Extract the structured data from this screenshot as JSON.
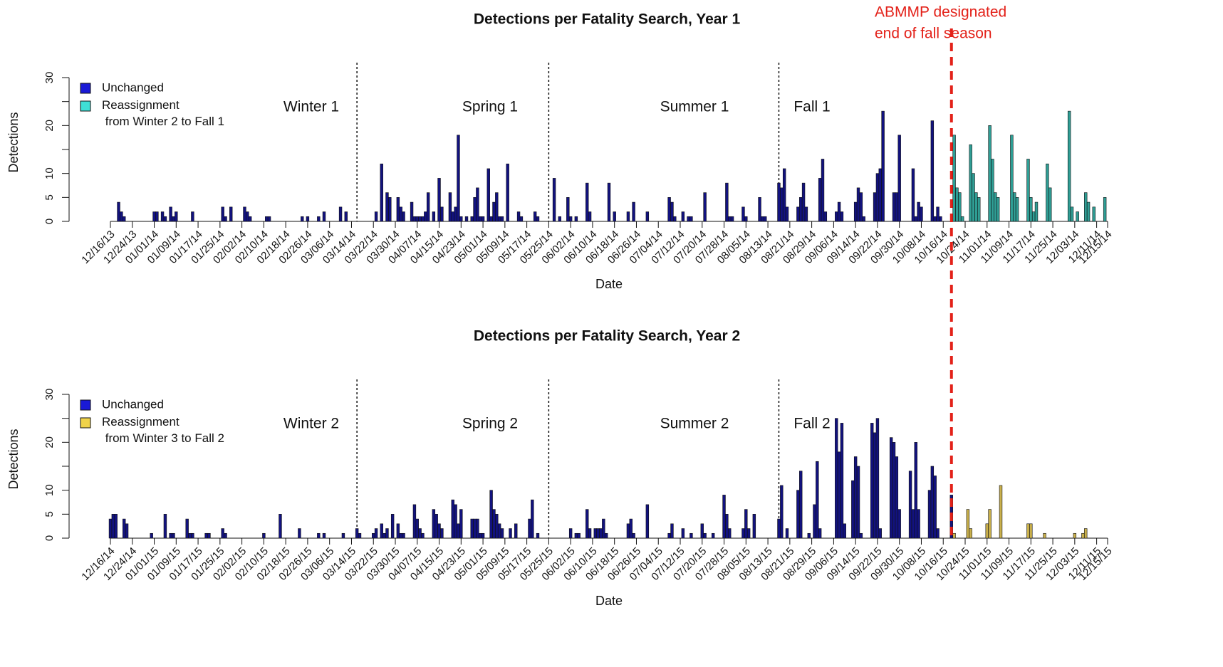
{
  "annotation": {
    "text": [
      "ABMMP designated",
      "end of fall season"
    ],
    "x": 307,
    "color": "#e32119"
  },
  "chart_data": [
    {
      "type": "bar",
      "title": "Detections per Fatality Search, Year 1",
      "xlabel": "Date",
      "ylabel": "Detections",
      "legend": "upper left",
      "xlim": [
        0,
        364
      ],
      "ylim": [
        0,
        30
      ],
      "yticks": [
        0,
        5,
        10,
        20,
        30
      ],
      "yminor_ticks": [
        15,
        25
      ],
      "dividers": [
        90,
        160,
        244
      ],
      "season_labels": [
        "Winter 1",
        "Spring 1",
        "Summer 1",
        "Fall 1"
      ],
      "xticks": [
        {
          "value": 0,
          "label": "12/16/13"
        },
        {
          "value": 8,
          "label": "12/24/13"
        },
        {
          "value": 16,
          "label": "01/01/14"
        },
        {
          "value": 24,
          "label": "01/09/14"
        },
        {
          "value": 32,
          "label": "01/17/14"
        },
        {
          "value": 40,
          "label": "01/25/14"
        },
        {
          "value": 48,
          "label": "02/02/14"
        },
        {
          "value": 56,
          "label": "02/10/14"
        },
        {
          "value": 64,
          "label": "02/18/14"
        },
        {
          "value": 72,
          "label": "02/26/14"
        },
        {
          "value": 80,
          "label": "03/06/14"
        },
        {
          "value": 88,
          "label": "03/14/14"
        },
        {
          "value": 96,
          "label": "03/22/14"
        },
        {
          "value": 104,
          "label": "03/30/14"
        },
        {
          "value": 112,
          "label": "04/07/14"
        },
        {
          "value": 120,
          "label": "04/15/14"
        },
        {
          "value": 128,
          "label": "04/23/14"
        },
        {
          "value": 136,
          "label": "05/01/14"
        },
        {
          "value": 144,
          "label": "05/09/14"
        },
        {
          "value": 152,
          "label": "05/17/14"
        },
        {
          "value": 160,
          "label": "05/25/14"
        },
        {
          "value": 168,
          "label": "06/02/14"
        },
        {
          "value": 176,
          "label": "06/10/14"
        },
        {
          "value": 184,
          "label": "06/18/14"
        },
        {
          "value": 192,
          "label": "06/26/14"
        },
        {
          "value": 200,
          "label": "07/04/14"
        },
        {
          "value": 208,
          "label": "07/12/14"
        },
        {
          "value": 216,
          "label": "07/20/14"
        },
        {
          "value": 224,
          "label": "07/28/14"
        },
        {
          "value": 232,
          "label": "08/05/14"
        },
        {
          "value": 240,
          "label": "08/13/14"
        },
        {
          "value": 248,
          "label": "08/21/14"
        },
        {
          "value": 256,
          "label": "08/29/14"
        },
        {
          "value": 264,
          "label": "09/06/14"
        },
        {
          "value": 272,
          "label": "09/14/14"
        },
        {
          "value": 280,
          "label": "09/22/14"
        },
        {
          "value": 288,
          "label": "09/30/14"
        },
        {
          "value": 296,
          "label": "10/08/14"
        },
        {
          "value": 304,
          "label": "10/16/14"
        },
        {
          "value": 312,
          "label": "10/24/14"
        },
        {
          "value": 320,
          "label": "11/01/14"
        },
        {
          "value": 328,
          "label": "11/09/14"
        },
        {
          "value": 336,
          "label": "11/17/14"
        },
        {
          "value": 344,
          "label": "11/25/14"
        },
        {
          "value": 352,
          "label": "12/03/14"
        },
        {
          "value": 360,
          "label": "12/11/14"
        },
        {
          "value": 364,
          "label": "12/15/14"
        }
      ],
      "series": [
        {
          "name": "Unchanged",
          "color": "#12127f",
          "legend_color": "#1a1ad6",
          "x": [
            3,
            4,
            5,
            16,
            17,
            19,
            20,
            22,
            23,
            24,
            30,
            41,
            42,
            44,
            49,
            50,
            51,
            57,
            58,
            70,
            72,
            76,
            78,
            84,
            86,
            97,
            99,
            101,
            102,
            105,
            106,
            107,
            110,
            111,
            112,
            113,
            114,
            115,
            116,
            118,
            120,
            121,
            124,
            125,
            126,
            127,
            128,
            130,
            132,
            133,
            134,
            135,
            136,
            138,
            139,
            140,
            141,
            142,
            143,
            145,
            149,
            150,
            155,
            156,
            162,
            164,
            167,
            168,
            170,
            174,
            175,
            182,
            184,
            189,
            191,
            196,
            204,
            205,
            206,
            209,
            211,
            212,
            217,
            225,
            226,
            227,
            231,
            232,
            237,
            238,
            239,
            244,
            245,
            246,
            247,
            251,
            252,
            253,
            254,
            259,
            260,
            261,
            265,
            266,
            267,
            272,
            273,
            274,
            275,
            279,
            280,
            281,
            282,
            286,
            287,
            288,
            293,
            294,
            295,
            296,
            300,
            301,
            302,
            303
          ],
          "values": [
            4,
            2,
            1,
            2,
            2,
            2,
            1,
            3,
            1,
            2,
            2,
            3,
            1,
            3,
            3,
            2,
            1,
            1,
            1,
            1,
            1,
            1,
            2,
            3,
            2,
            2,
            12,
            6,
            5,
            5,
            3,
            2,
            4,
            1,
            1,
            1,
            1,
            2,
            6,
            2,
            9,
            3,
            6,
            2,
            3,
            18,
            1,
            1,
            1,
            5,
            7,
            1,
            1,
            11,
            1,
            4,
            6,
            1,
            1,
            12,
            2,
            1,
            2,
            1,
            9,
            1,
            5,
            1,
            1,
            8,
            2,
            8,
            2,
            2,
            4,
            2,
            5,
            4,
            1,
            2,
            1,
            1,
            6,
            8,
            1,
            1,
            3,
            1,
            5,
            1,
            1,
            8,
            7,
            11,
            3,
            3,
            5,
            8,
            3,
            9,
            13,
            2,
            2,
            4,
            2,
            4,
            7,
            6,
            1,
            6,
            10,
            11,
            23,
            6,
            6,
            18,
            11,
            1,
            4,
            3,
            21,
            1,
            3,
            1
          ]
        },
        {
          "name": "Reassignment from Winter 2 to Fall 1",
          "color": "#2f9e95",
          "legend_color": "#3fe0d6",
          "x": [
            308,
            309,
            310,
            311,
            314,
            315,
            316,
            317,
            321,
            322,
            323,
            324,
            329,
            330,
            331,
            335,
            336,
            337,
            338,
            342,
            343,
            350,
            351,
            353,
            356,
            357,
            359,
            363
          ],
          "values": [
            18,
            7,
            6,
            1,
            16,
            10,
            6,
            5,
            20,
            13,
            6,
            5,
            18,
            6,
            5,
            13,
            5,
            2,
            4,
            12,
            7,
            23,
            3,
            2,
            6,
            4,
            3,
            5
          ]
        }
      ]
    },
    {
      "type": "bar",
      "title": "Detections per Fatality Search, Year 2",
      "xlabel": "Date",
      "ylabel": "Detections",
      "legend": "upper left",
      "xlim": [
        0,
        364
      ],
      "ylim": [
        0,
        30
      ],
      "yticks": [
        0,
        5,
        10,
        20,
        30
      ],
      "yminor_ticks": [
        15,
        25
      ],
      "dividers": [
        90,
        160,
        244
      ],
      "season_labels": [
        "Winter 2",
        "Spring 2",
        "Summer 2",
        "Fall 2"
      ],
      "xticks": [
        {
          "value": 0,
          "label": "12/16/14"
        },
        {
          "value": 8,
          "label": "12/24/14"
        },
        {
          "value": 16,
          "label": "01/01/15"
        },
        {
          "value": 24,
          "label": "01/09/15"
        },
        {
          "value": 32,
          "label": "01/17/15"
        },
        {
          "value": 40,
          "label": "01/25/15"
        },
        {
          "value": 48,
          "label": "02/02/15"
        },
        {
          "value": 56,
          "label": "02/10/15"
        },
        {
          "value": 64,
          "label": "02/18/15"
        },
        {
          "value": 72,
          "label": "02/26/15"
        },
        {
          "value": 80,
          "label": "03/06/15"
        },
        {
          "value": 88,
          "label": "03/14/15"
        },
        {
          "value": 96,
          "label": "03/22/15"
        },
        {
          "value": 104,
          "label": "03/30/15"
        },
        {
          "value": 112,
          "label": "04/07/15"
        },
        {
          "value": 120,
          "label": "04/15/15"
        },
        {
          "value": 128,
          "label": "04/23/15"
        },
        {
          "value": 136,
          "label": "05/01/15"
        },
        {
          "value": 144,
          "label": "05/09/15"
        },
        {
          "value": 152,
          "label": "05/17/15"
        },
        {
          "value": 160,
          "label": "05/25/15"
        },
        {
          "value": 168,
          "label": "06/02/15"
        },
        {
          "value": 176,
          "label": "06/10/15"
        },
        {
          "value": 184,
          "label": "06/18/15"
        },
        {
          "value": 192,
          "label": "06/26/15"
        },
        {
          "value": 200,
          "label": "07/04/15"
        },
        {
          "value": 208,
          "label": "07/12/15"
        },
        {
          "value": 216,
          "label": "07/20/15"
        },
        {
          "value": 224,
          "label": "07/28/15"
        },
        {
          "value": 232,
          "label": "08/05/15"
        },
        {
          "value": 240,
          "label": "08/13/15"
        },
        {
          "value": 248,
          "label": "08/21/15"
        },
        {
          "value": 256,
          "label": "08/29/15"
        },
        {
          "value": 264,
          "label": "09/06/15"
        },
        {
          "value": 272,
          "label": "09/14/15"
        },
        {
          "value": 280,
          "label": "09/22/15"
        },
        {
          "value": 288,
          "label": "09/30/15"
        },
        {
          "value": 296,
          "label": "10/08/15"
        },
        {
          "value": 304,
          "label": "10/16/15"
        },
        {
          "value": 312,
          "label": "10/24/15"
        },
        {
          "value": 320,
          "label": "11/01/15"
        },
        {
          "value": 328,
          "label": "11/09/15"
        },
        {
          "value": 336,
          "label": "11/17/15"
        },
        {
          "value": 344,
          "label": "11/25/15"
        },
        {
          "value": 352,
          "label": "12/03/15"
        },
        {
          "value": 360,
          "label": "12/11/15"
        },
        {
          "value": 364,
          "label": "12/15/15"
        }
      ],
      "series": [
        {
          "name": "Unchanged",
          "color": "#12127f",
          "legend_color": "#1a1ad6",
          "x": [
            0,
            1,
            2,
            5,
            6,
            15,
            20,
            22,
            23,
            28,
            29,
            30,
            35,
            36,
            41,
            42,
            56,
            62,
            69,
            76,
            78,
            85,
            90,
            91,
            96,
            97,
            99,
            100,
            101,
            103,
            105,
            106,
            107,
            111,
            112,
            113,
            114,
            118,
            119,
            120,
            121,
            125,
            126,
            127,
            128,
            132,
            133,
            134,
            135,
            136,
            139,
            140,
            141,
            142,
            143,
            146,
            148,
            153,
            154,
            156,
            168,
            170,
            171,
            174,
            175,
            177,
            178,
            179,
            180,
            181,
            189,
            190,
            191,
            196,
            204,
            205,
            209,
            212,
            216,
            217,
            220,
            224,
            225,
            226,
            231,
            232,
            233,
            235,
            244,
            245,
            247,
            251,
            252,
            255,
            257,
            258,
            259,
            265,
            266,
            267,
            268,
            271,
            272,
            273,
            274,
            278,
            279,
            280,
            281,
            285,
            286,
            287,
            288,
            292,
            293,
            294,
            295,
            299,
            300,
            301,
            302,
            307
          ],
          "values": [
            4,
            5,
            5,
            4,
            3,
            1,
            5,
            1,
            1,
            4,
            1,
            1,
            1,
            1,
            2,
            1,
            1,
            5,
            2,
            1,
            1,
            1,
            2,
            1,
            1,
            2,
            3,
            1,
            2,
            5,
            3,
            1,
            1,
            7,
            4,
            2,
            1,
            6,
            5,
            3,
            2,
            8,
            7,
            3,
            6,
            4,
            4,
            4,
            1,
            1,
            10,
            6,
            5,
            3,
            2,
            2,
            3,
            4,
            8,
            1,
            2,
            1,
            1,
            6,
            2,
            2,
            2,
            2,
            4,
            1,
            3,
            4,
            1,
            7,
            1,
            3,
            2,
            1,
            3,
            1,
            1,
            9,
            5,
            2,
            2,
            6,
            2,
            5,
            4,
            11,
            2,
            10,
            14,
            1,
            7,
            16,
            2,
            25,
            18,
            24,
            3,
            12,
            17,
            15,
            1,
            24,
            22,
            25,
            2,
            21,
            20,
            17,
            6,
            14,
            6,
            20,
            6,
            10,
            15,
            13,
            2,
            9
          ]
        },
        {
          "name": "Reassignment from Winter 3 to Fall 2",
          "color": "#c9b04c",
          "legend_color": "#f0d34a",
          "x": [
            308,
            313,
            314,
            320,
            321,
            325,
            335,
            336,
            341,
            352,
            355,
            356
          ],
          "values": [
            1,
            6,
            2,
            3,
            6,
            11,
            3,
            3,
            1,
            1,
            1,
            2
          ]
        }
      ]
    }
  ]
}
